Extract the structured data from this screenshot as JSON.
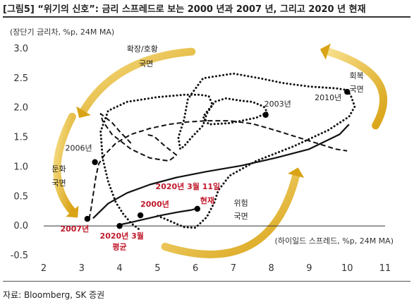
{
  "header": {
    "title": "[그림5] “위기의 신호”: 금리 스프레드로 보는 2000 년과 2007 년, 그리고 2020 년 현재"
  },
  "footer": {
    "source": "자료: Bloomberg, SK 증권"
  },
  "chart_data": {
    "type": "scatter",
    "title": "",
    "xlabel": "(하이일드 스프레드, %p, 24M MA)",
    "ylabel": "(장단기 금리차, %p, 24M MA)",
    "xlim": [
      2,
      11
    ],
    "ylim": [
      -0.5,
      3.0
    ],
    "xticks": [
      "2",
      "3",
      "4",
      "5",
      "6",
      "7",
      "8",
      "9",
      "10",
      "11"
    ],
    "yticks": [
      "-0.5",
      "0.0",
      "0.5",
      "1.0",
      "1.5",
      "2.0",
      "2.5",
      "3.0"
    ],
    "grid": false,
    "series": [
      {
        "style": "dotted",
        "x": [
          4.5,
          4.3,
          4.1,
          3.9,
          3.7,
          3.55,
          3.5,
          3.7,
          4.2,
          5.0,
          5.7,
          6.1,
          6.35,
          6.45,
          6.2,
          6.35,
          6.9,
          7.6,
          7.9,
          7.8,
          7.5,
          7.2,
          6.8,
          6.5,
          6.3,
          6.2,
          5.9,
          5.7,
          5.6,
          5.55,
          5.7,
          5.8,
          6.2,
          7.0,
          7.7,
          8.3,
          9.0,
          9.7,
          10.0,
          10.1,
          10.2,
          10.05,
          9.5,
          8.6,
          7.6,
          6.9,
          6.6,
          6.5,
          6.3,
          6.0,
          5.7,
          5.45,
          5.2,
          5.0
        ],
        "y": [
          -0.05,
          0.05,
          0.2,
          0.4,
          0.75,
          1.15,
          1.6,
          1.95,
          2.1,
          2.18,
          2.22,
          2.22,
          2.2,
          2.05,
          1.85,
          1.72,
          1.74,
          1.83,
          1.92,
          2.02,
          2.1,
          2.12,
          2.16,
          2.1,
          1.9,
          1.7,
          1.5,
          1.35,
          1.3,
          1.5,
          1.8,
          2.15,
          2.5,
          2.58,
          2.5,
          2.42,
          2.36,
          2.33,
          2.3,
          2.2,
          2.02,
          1.85,
          1.62,
          1.35,
          1.1,
          0.85,
          0.6,
          0.4,
          0.15,
          -0.03,
          -0.02,
          0.05,
          0.12,
          0.17
        ]
      },
      {
        "style": "dashed",
        "x": [
          4.3,
          4.0,
          3.8,
          3.6,
          3.5,
          3.55,
          3.8,
          4.3,
          4.8,
          5.3,
          5.5,
          5.2,
          4.9,
          4.7
        ],
        "y": [
          1.4,
          1.6,
          1.75,
          1.85,
          1.9,
          1.78,
          1.55,
          1.3,
          1.15,
          1.1,
          1.2,
          1.35,
          1.52,
          1.55
        ]
      },
      {
        "style": "dashed",
        "x": [
          3.2,
          3.25,
          3.32,
          3.38,
          3.45,
          3.6,
          3.9,
          4.3,
          4.8,
          5.3,
          5.8,
          6.3,
          6.9,
          7.5,
          8.1,
          8.7,
          9.3,
          9.7,
          10.0
        ],
        "y": [
          0.12,
          0.3,
          0.6,
          0.85,
          1.05,
          1.2,
          1.4,
          1.55,
          1.65,
          1.72,
          1.76,
          1.78,
          1.78,
          1.73,
          1.62,
          1.5,
          1.38,
          1.3,
          1.27
        ]
      },
      {
        "style": "solid",
        "x": [
          3.3,
          3.7,
          4.2,
          4.8,
          5.5,
          6.3,
          7.2,
          8.1,
          9.0,
          9.8,
          10.05
        ],
        "y": [
          0.13,
          0.38,
          0.56,
          0.7,
          0.82,
          0.92,
          1.02,
          1.15,
          1.3,
          1.55,
          1.72
        ]
      },
      {
        "style": "solid",
        "x": [
          4.0,
          4.3,
          4.7,
          5.1,
          5.5,
          5.9,
          6.05
        ],
        "y": [
          0.02,
          0.06,
          0.12,
          0.18,
          0.23,
          0.27,
          0.3
        ]
      }
    ],
    "points": [
      {
        "label": "2006년",
        "x": 3.35,
        "y": 1.08,
        "red": false,
        "anchor": "end",
        "dx": -4,
        "dy": -16
      },
      {
        "label": "2007년",
        "x": 3.15,
        "y": 0.12,
        "red": true,
        "anchor": "middle",
        "dx": -18,
        "dy": 18
      },
      {
        "label": "2003년",
        "x": 7.85,
        "y": 1.88,
        "red": false,
        "anchor": "start",
        "dx": -2,
        "dy": -12
      },
      {
        "label": "2010년",
        "x": 10.0,
        "y": 2.27,
        "red": false,
        "anchor": "end",
        "dx": -8,
        "dy": 12
      },
      {
        "label": "2000년",
        "x": 4.55,
        "y": 0.18,
        "red": true,
        "anchor": "start",
        "dx": 0,
        "dy": -12
      },
      {
        "label": "2020년 3월",
        "x": 4.0,
        "y": 0.0,
        "red": true,
        "anchor": "start",
        "dx": -28,
        "dy": 18
      },
      {
        "label": "현재",
        "x": 6.05,
        "y": 0.29,
        "red": true,
        "anchor": "start",
        "dx": 4,
        "dy": -8
      }
    ],
    "annotations": [
      {
        "text": "2020년 3월 11일",
        "x": 5.8,
        "y": 0.62,
        "red": true
      },
      {
        "text": "평균",
        "x": 4.0,
        "y": -0.4,
        "red": true
      },
      {
        "text": "확장/호황",
        "x": 4.6,
        "y": 2.95,
        "red": false
      },
      {
        "text": "국면",
        "x": 4.7,
        "y": 2.7,
        "red": false
      },
      {
        "text": "회복",
        "x": 10.25,
        "y": 2.5,
        "red": false
      },
      {
        "text": "국면",
        "x": 10.25,
        "y": 2.27,
        "red": false
      },
      {
        "text": "둔화",
        "x": 2.4,
        "y": 0.92,
        "red": false
      },
      {
        "text": "국면",
        "x": 2.4,
        "y": 0.68,
        "red": false
      },
      {
        "text": "위험",
        "x": 7.2,
        "y": 0.34,
        "red": false
      },
      {
        "text": "국면",
        "x": 7.2,
        "y": 0.12,
        "red": false
      }
    ],
    "phase_arrows": [
      {
        "name": "expansion-to-slowdown-arrow",
        "from": [
          5.9,
          2.95
        ],
        "control": [
          3.9,
          2.85
        ],
        "to": [
          3.05,
          1.95
        ]
      },
      {
        "name": "slowdown-to-trough-arrow",
        "from": [
          2.75,
          1.85
        ],
        "control": [
          1.95,
          0.85
        ],
        "to": [
          2.75,
          0.25
        ]
      },
      {
        "name": "risk-to-recovery-arrow",
        "from": [
          5.2,
          -0.35
        ],
        "control": [
          7.95,
          -0.9
        ],
        "to": [
          8.65,
          0.85
        ]
      },
      {
        "name": "recovery-to-expansion-arrow",
        "from": [
          10.75,
          1.7
        ],
        "control": [
          11.5,
          2.55
        ],
        "to": [
          9.5,
          2.95
        ]
      }
    ],
    "colors": {
      "line": "#111111",
      "marker": "#000000",
      "label_red": "#c0182a",
      "arrow_light": "#f7df8a",
      "arrow_dark": "#d9a315"
    }
  }
}
